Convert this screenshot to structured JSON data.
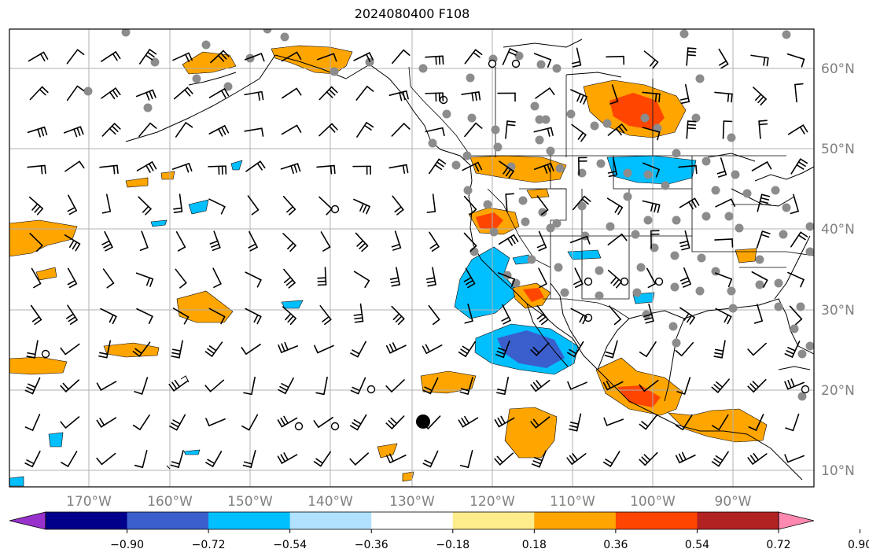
{
  "title": "2024080400 F108",
  "map": {
    "lon_ticks": [
      "170°W",
      "160°W",
      "150°W",
      "140°W",
      "130°W",
      "120°W",
      "110°W",
      "100°W",
      "90°W"
    ],
    "lat_ticks": [
      "60°N",
      "50°N",
      "40°N",
      "30°N",
      "20°N",
      "10°N"
    ]
  },
  "colorbar": {
    "labels": [
      "−0.90",
      "−0.72",
      "−0.54",
      "−0.36",
      "−0.18",
      "0.18",
      "0.36",
      "0.54",
      "0.72",
      "0.90"
    ],
    "colors": [
      "#9932cc",
      "#00008b",
      "#3a5fcd",
      "#00bfff",
      "#b0e2ff",
      "#ffffff",
      "#ffec8b",
      "#ffa500",
      "#ff4500",
      "#b22222",
      "#ff88b0"
    ]
  }
}
